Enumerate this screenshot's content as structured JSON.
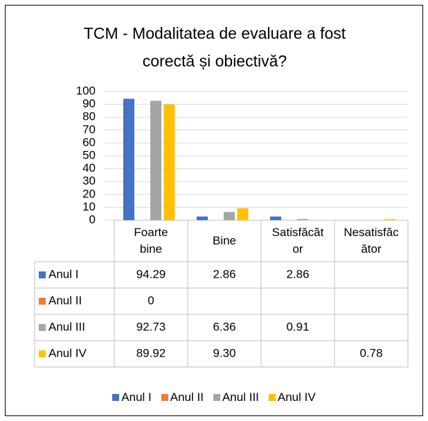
{
  "chart_data": {
    "type": "bar",
    "title": "TCM - Modalitatea de evaluare a fost corectă și obiectivă?",
    "categories": [
      "Foarte bine",
      "Bine",
      "Satisfăcător",
      "Nesatisfăcător"
    ],
    "series": [
      {
        "name": "Anul I",
        "color": "#4472c4",
        "values": [
          94.29,
          2.86,
          2.86,
          null
        ],
        "value_labels": [
          "94.29",
          "2.86",
          "2.86",
          null
        ]
      },
      {
        "name": "Anul II",
        "color": "#ed7d31",
        "values": [
          0,
          null,
          null,
          null
        ],
        "value_labels": [
          "0",
          null,
          null,
          null
        ]
      },
      {
        "name": "Anul III",
        "color": "#a5a5a5",
        "values": [
          92.73,
          6.36,
          0.91,
          null
        ],
        "value_labels": [
          "92.73",
          "6.36",
          "0.91",
          null
        ]
      },
      {
        "name": "Anul IV",
        "color": "#ffc000",
        "values": [
          89.92,
          9.3,
          null,
          0.78
        ],
        "value_labels": [
          "89.92",
          "9.30",
          null,
          "0.78"
        ]
      }
    ],
    "ylim": [
      0,
      100
    ],
    "yticks": [
      0,
      10,
      20,
      30,
      40,
      50,
      60,
      70,
      80,
      90,
      100
    ],
    "grid": true,
    "legend": "bottom"
  }
}
